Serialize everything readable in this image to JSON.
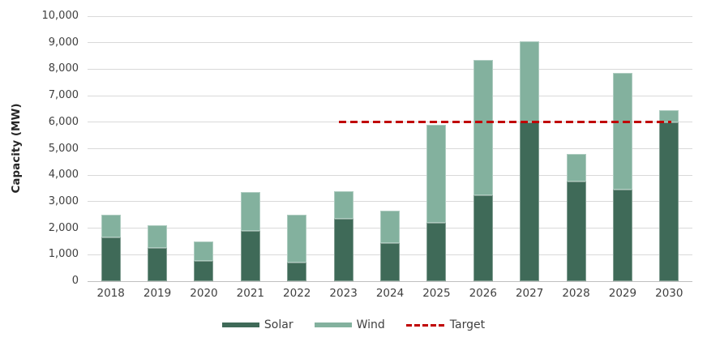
{
  "chart_data": {
    "type": "bar",
    "stacked": true,
    "title": "",
    "xlabel": "",
    "ylabel": "Capacity (MW)",
    "categories": [
      "2018",
      "2019",
      "2020",
      "2021",
      "2022",
      "2023",
      "2024",
      "2025",
      "2026",
      "2027",
      "2028",
      "2029",
      "2030"
    ],
    "series": [
      {
        "name": "Solar",
        "color": "#3F6A58",
        "values": [
          1650,
          1250,
          750,
          1900,
          700,
          2350,
          1450,
          2200,
          3250,
          6000,
          3750,
          3450,
          6000
        ]
      },
      {
        "name": "Wind",
        "color": "#83B19E",
        "values": [
          850,
          850,
          750,
          1450,
          1800,
          1050,
          1200,
          3700,
          5100,
          3050,
          1050,
          4400,
          450
        ]
      }
    ],
    "target_line": {
      "name": "Target",
      "color": "#C00000",
      "value": 6000,
      "style": "dashed",
      "from_category": "2023",
      "to_category": "2030"
    },
    "ylim": [
      0,
      10000
    ],
    "y_tick_step": 1000,
    "y_tick_labels": [
      "0",
      "1,000",
      "2,000",
      "3,000",
      "4,000",
      "5,000",
      "6,000",
      "7,000",
      "8,000",
      "9,000",
      "10,000"
    ],
    "grid": "horizontal",
    "legend_position": "bottom"
  },
  "colors": {
    "gridline": "#D9D9D9",
    "axis_line": "#BFBFBF",
    "text": "#404040",
    "background": "#FFFFFF"
  }
}
